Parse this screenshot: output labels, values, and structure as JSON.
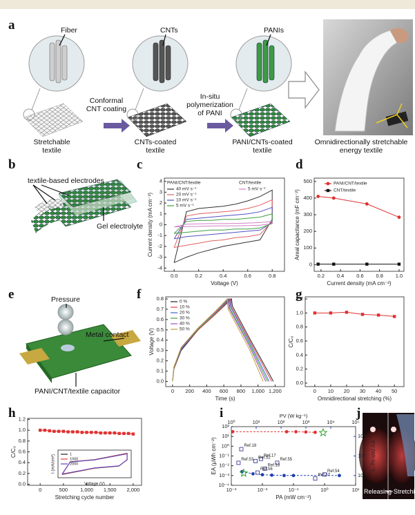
{
  "panel_labels": [
    "a",
    "b",
    "c",
    "d",
    "e",
    "f",
    "g",
    "h",
    "i",
    "j"
  ],
  "panel_a": {
    "callouts": [
      "Fiber",
      "CNTs",
      "PANIs"
    ],
    "steps": [
      "Conformal CNT coating",
      "In-situ polymerization of PANI"
    ],
    "captions": [
      "Stretchable textile",
      "CNTs-coated textile",
      "PANI/CNTs-coated textile",
      "Omnidirectionally stretchable energy textile"
    ]
  },
  "panel_b": {
    "labels": [
      "textile-based electrodes",
      "Gel electrolyte"
    ]
  },
  "panel_e": {
    "labels": [
      "Pressure",
      "Metal contact",
      "PANI/CNT/textile capacitor"
    ]
  },
  "panel_j": {
    "labels": [
      "Releasing",
      "Stretching"
    ]
  },
  "chart_data": [
    {
      "type": "line",
      "xlabel": "Voltage (V)",
      "ylabel": "Current density (mA cm⁻²)",
      "legend_titles": [
        "PANI/CNT/textile",
        "CNT/textile"
      ],
      "x": [
        0,
        0.1,
        0.2,
        0.3,
        0.4,
        0.5,
        0.6,
        0.7,
        0.8,
        0.8,
        0.7,
        0.6,
        0.5,
        0.4,
        0.3,
        0.2,
        0.1,
        0
      ],
      "xlim": [
        -0.08,
        0.9
      ],
      "ylim": [
        -4.3,
        4.3
      ],
      "xticks": [
        {
          "value": 0,
          "label": "0.0"
        },
        0.2,
        0.4,
        0.6,
        0.8
      ],
      "yticks": [
        -4,
        -3,
        -2,
        -1,
        0,
        1,
        2,
        3,
        4
      ],
      "series": [
        {
          "name": "40 mV s⁻¹",
          "color": "#333333",
          "values": [
            -3.5,
            1.2,
            1.5,
            1.6,
            1.7,
            1.9,
            2.2,
            2.6,
            3.2,
            0.5,
            -1.4,
            -1.6,
            -1.8,
            -2.0,
            -2.3,
            -2.6,
            -3.0,
            -3.5
          ]
        },
        {
          "name": "20 mV s⁻¹",
          "color": "#e06060",
          "values": [
            -2.1,
            0.8,
            1.0,
            1.1,
            1.2,
            1.3,
            1.5,
            1.8,
            2.3,
            0.3,
            -0.9,
            -1.1,
            -1.2,
            -1.4,
            -1.5,
            -1.7,
            -1.9,
            -2.1
          ]
        },
        {
          "name": "10 mV s⁻¹",
          "color": "#5050c0",
          "values": [
            -1.3,
            0.5,
            0.6,
            0.7,
            0.8,
            0.9,
            1.0,
            1.2,
            1.6,
            0.2,
            -0.5,
            -0.6,
            -0.7,
            -0.8,
            -0.9,
            -1.0,
            -1.1,
            -1.3
          ]
        },
        {
          "name": "5 mV s⁻¹",
          "color": "#40a040",
          "values": [
            -0.8,
            0.3,
            0.4,
            0.4,
            0.5,
            0.5,
            0.6,
            0.7,
            1.0,
            0.1,
            -0.3,
            -0.4,
            -0.4,
            -0.5,
            -0.5,
            -0.6,
            -0.7,
            -0.8
          ]
        },
        {
          "name": "5 mV s⁻¹",
          "color": "#d080c8",
          "values": [
            -0.2,
            0.05,
            0.08,
            0.1,
            0.1,
            0.12,
            0.15,
            0.2,
            0.3,
            0.1,
            -0.05,
            -0.08,
            -0.1,
            -0.1,
            -0.12,
            -0.15,
            -0.18,
            -0.2
          ]
        }
      ]
    },
    {
      "type": "line",
      "xlabel": "Current density (mA cm⁻²)",
      "ylabel": "Areal capacitance (mF cm⁻²)",
      "x": [
        0.17,
        0.33,
        0.67,
        1.0
      ],
      "xlim": [
        0.13,
        1.05
      ],
      "ylim": [
        -40,
        520
      ],
      "xticks": [
        0.2,
        0.4,
        0.6,
        0.8,
        {
          "value": 1,
          "label": "1.0"
        }
      ],
      "yticks": [
        0,
        100,
        200,
        300,
        400,
        500
      ],
      "series": [
        {
          "name": "PANI/CNT/textile",
          "color": "#e03030",
          "marker": "circle",
          "values": [
            410,
            400,
            365,
            285
          ]
        },
        {
          "name": "CNT/textile",
          "color": "#111111",
          "marker": "square",
          "values": [
            3,
            3,
            3,
            3
          ]
        }
      ]
    },
    {
      "type": "line",
      "xlabel": "Time (s)",
      "ylabel": "Voltage (V)",
      "xlim": [
        -80,
        1310
      ],
      "ylim": [
        -0.05,
        0.82
      ],
      "xticks": [
        0,
        200,
        400,
        600,
        800,
        {
          "value": 1000,
          "label": "1,000"
        },
        {
          "value": 1200,
          "label": "1,200"
        }
      ],
      "yticks": [
        {
          "value": 0,
          "label": "0.0"
        },
        0.1,
        0.2,
        0.3,
        0.4,
        0.5,
        0.6,
        0.7,
        0.8
      ],
      "series": [
        {
          "name": "0 %",
          "color": "#222222",
          "x": [
            0,
            15,
            100,
            300,
            500,
            690,
            700,
            900,
            1180
          ],
          "values": [
            0,
            0.12,
            0.3,
            0.5,
            0.65,
            0.8,
            0.73,
            0.42,
            0
          ]
        },
        {
          "name": "10 %",
          "color": "#e04040",
          "x": [
            0,
            15,
            100,
            300,
            500,
            680,
            690,
            900,
            1160
          ],
          "values": [
            0,
            0.12,
            0.31,
            0.5,
            0.65,
            0.8,
            0.72,
            0.4,
            0
          ]
        },
        {
          "name": "20 %",
          "color": "#4060d0",
          "x": [
            0,
            15,
            100,
            300,
            500,
            670,
            680,
            900,
            1130
          ],
          "values": [
            0,
            0.13,
            0.31,
            0.51,
            0.66,
            0.8,
            0.72,
            0.38,
            0
          ]
        },
        {
          "name": "30 %",
          "color": "#40a040",
          "x": [
            0,
            15,
            100,
            300,
            500,
            660,
            670,
            900,
            1110
          ],
          "values": [
            0,
            0.13,
            0.32,
            0.51,
            0.66,
            0.8,
            0.71,
            0.36,
            0
          ]
        },
        {
          "name": "40 %",
          "color": "#a050c0",
          "x": [
            0,
            15,
            100,
            300,
            500,
            650,
            660,
            900,
            1090
          ],
          "values": [
            0,
            0.14,
            0.32,
            0.52,
            0.67,
            0.8,
            0.71,
            0.34,
            0
          ]
        },
        {
          "name": "50 %",
          "color": "#c0a040",
          "x": [
            0,
            15,
            100,
            300,
            500,
            640,
            650,
            900,
            1060
          ],
          "values": [
            0,
            0.14,
            0.33,
            0.52,
            0.68,
            0.8,
            0.7,
            0.31,
            0
          ]
        }
      ]
    },
    {
      "type": "line",
      "xlabel": "Omnidirectional stretching (%)",
      "ylabel": "C/C₀",
      "x": [
        0,
        10,
        20,
        30,
        40,
        50
      ],
      "xlim": [
        -6,
        56
      ],
      "ylim": [
        -0.05,
        1.23
      ],
      "xticks": [
        0,
        10,
        20,
        30,
        40,
        50
      ],
      "yticks": [
        {
          "value": 0,
          "label": "0.0"
        },
        0.2,
        0.4,
        0.6,
        0.8,
        {
          "value": 1,
          "label": "1.0"
        },
        1.2
      ],
      "series": [
        {
          "color": "#e03030",
          "marker": "square",
          "values": [
            1.0,
            1.0,
            1.01,
            0.98,
            0.97,
            0.95
          ]
        }
      ]
    },
    {
      "type": "line",
      "xlabel": "Stretching cycle number",
      "ylabel": "C/C₀",
      "x": [
        0,
        100,
        200,
        300,
        400,
        500,
        600,
        700,
        800,
        900,
        1000,
        1100,
        1200,
        1300,
        1400,
        1500,
        1600,
        1700,
        1800,
        1900,
        2000
      ],
      "xlim": [
        -270,
        2180
      ],
      "ylim": [
        -0.02,
        1.22
      ],
      "xticks": [
        0,
        500,
        {
          "value": 1000,
          "label": "1,000"
        },
        {
          "value": 1500,
          "label": "1,500"
        },
        {
          "value": 2000,
          "label": "2,000"
        }
      ],
      "yticks": [
        {
          "value": 0,
          "label": "0.0"
        },
        0.2,
        0.4,
        0.6,
        0.8,
        {
          "value": 1,
          "label": "1.0"
        },
        1.2
      ],
      "series": [
        {
          "color": "#e03030",
          "marker": "square",
          "values": [
            1.0,
            1.0,
            0.99,
            0.98,
            0.98,
            0.98,
            0.97,
            0.97,
            0.97,
            0.96,
            0.96,
            0.96,
            0.96,
            0.95,
            0.95,
            0.95,
            0.95,
            0.94,
            0.94,
            0.94,
            0.93
          ]
        }
      ]
    },
    {
      "type": "line",
      "xlabel": "Voltage (V)",
      "ylabel": "I (mA/cm²)",
      "x": [
        0,
        0.1,
        0.4,
        0.8,
        0.8,
        0.7,
        0.4,
        0
      ],
      "xlim": [
        -0.05,
        0.85
      ],
      "ylim": [
        -1.3,
        1.3
      ],
      "series": [
        {
          "name": "1",
          "color": "#222222",
          "values": [
            -1.0,
            0.2,
            0.4,
            1.0,
            0.4,
            -0.2,
            -0.4,
            -1.0
          ]
        },
        {
          "name": "1000",
          "color": "#e04040",
          "values": [
            -0.98,
            0.19,
            0.39,
            0.98,
            0.39,
            -0.19,
            -0.39,
            -0.98
          ]
        },
        {
          "name": "2000",
          "color": "#6040c0",
          "values": [
            -0.95,
            0.18,
            0.38,
            0.95,
            0.38,
            -0.18,
            -0.38,
            -0.95
          ]
        }
      ]
    },
    {
      "type": "scatter",
      "log_x": true,
      "log_y": true,
      "xlabel": "PA (mW cm⁻²)",
      "ylabel": "EA (µWh cm⁻²)",
      "x2label": "PV (W kg⁻¹)",
      "y2label": "EV (Wh kg⁻¹)",
      "xlim": [
        0.001,
        10
      ],
      "ylim": [
        0.0001,
        100
      ],
      "x2lim": [
        1,
        100000
      ],
      "y2lim": [
        0.001,
        1000
      ],
      "xticks": [
        {
          "value": 0.001,
          "label": "10⁻³"
        },
        {
          "value": 0.01,
          "label": "10⁻²"
        },
        {
          "value": 0.1,
          "label": "10⁻¹"
        },
        {
          "value": 1,
          "label": "10⁰"
        },
        {
          "value": 10,
          "label": "10¹"
        }
      ],
      "yticks": [
        {
          "value": 0.0001,
          "label": "10⁻⁴"
        },
        {
          "value": 0.001,
          "label": "10⁻³"
        },
        {
          "value": 0.01,
          "label": "10⁻²"
        },
        {
          "value": 0.1,
          "label": "10⁻¹"
        },
        {
          "value": 1,
          "label": "10⁰"
        },
        {
          "value": 10,
          "label": "10¹"
        },
        {
          "value": 100,
          "label": "10²"
        }
      ],
      "x2ticks": [
        {
          "value": 1,
          "label": "10⁰"
        },
        {
          "value": 10,
          "label": "10¹"
        },
        {
          "value": 100,
          "label": "10²"
        },
        {
          "value": 1000,
          "label": "10³"
        },
        {
          "value": 10000,
          "label": "10⁴"
        },
        {
          "value": 100000,
          "label": "10⁵"
        }
      ],
      "y2ticks": [
        {
          "value": 0.01,
          "label": "10⁻²"
        },
        {
          "value": 1,
          "label": "10⁰"
        },
        {
          "value": 100,
          "label": "10²"
        }
      ],
      "series": [
        {
          "color": "#e03030",
          "marker": "circle",
          "dash": true,
          "x": [
            0.0011,
            0.06,
            0.12,
            0.25,
            0.5
          ],
          "values": [
            30,
            30,
            30,
            28,
            26
          ]
        },
        {
          "color": "#2040b0",
          "marker": "circle",
          "dash": true,
          "x": [
            0.0022,
            0.005,
            0.01,
            0.02,
            0.05,
            0.1,
            3
          ],
          "values": [
            0.0025,
            0.0015,
            0.0012,
            0.0011,
            0.001,
            0.001,
            0.001
          ]
        },
        {
          "color": "#30a030",
          "marker": "star",
          "x": [
            0.9,
            0.0025
          ],
          "values": [
            24,
            0.0018
          ]
        },
        {
          "color": "#5050a0",
          "marker": "square-open",
          "x": [
            0.0021,
            0.009,
            0.006,
            0.03,
            0.012,
            0.0017,
            0.007,
            0.5,
            1.0
          ],
          "values": [
            0.5,
            0.05,
            0.03,
            0.02,
            0.005,
            0.02,
            0.002,
            0.0005,
            0.0013
          ],
          "labels": [
            "Ref.18",
            "Ref.17",
            "Ref.52",
            "Ref.55",
            "Ref.13",
            "Ref.53",
            "Ref.56",
            "Ref.57",
            "Ref.54"
          ]
        }
      ]
    }
  ]
}
